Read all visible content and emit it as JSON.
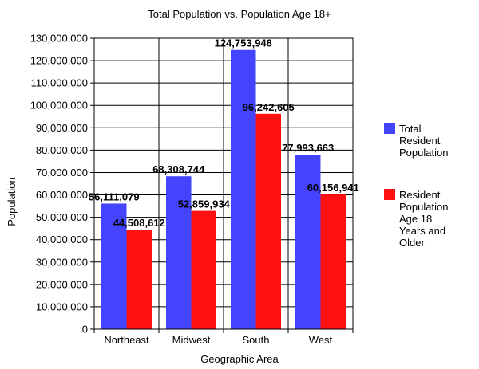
{
  "chart_data": {
    "type": "bar",
    "title": "Total Population vs. Population Age 18+",
    "xlabel": "Geographic Area",
    "ylabel": "Population",
    "ylim": [
      0,
      130000000
    ],
    "ytick_step": 10000000,
    "yticks": [
      "0",
      "10,000,000",
      "20,000,000",
      "30,000,000",
      "40,000,000",
      "50,000,000",
      "60,000,000",
      "70,000,000",
      "80,000,000",
      "90,000,000",
      "100,000,000",
      "110,000,000",
      "120,000,000",
      "130,000,000"
    ],
    "categories": [
      "Northeast",
      "Midwest",
      "South",
      "West"
    ],
    "series": [
      {
        "name": "Total Resident Population",
        "legend_lines": [
          "Total",
          "Resident",
          "Population"
        ],
        "color": "#4444ff",
        "values": [
          56111079,
          68308744,
          124753948,
          77993663
        ],
        "labels": [
          "56,111,079",
          "68,308,744",
          "124,753,948",
          "77,993,663"
        ]
      },
      {
        "name": "Resident Population Age 18 Years and Older",
        "legend_lines": [
          "Resident",
          "Population",
          "Age 18",
          "Years and",
          "Older"
        ],
        "color": "#ff1111",
        "values": [
          44508612,
          52859934,
          96242605,
          60156941
        ],
        "labels": [
          "44,508,612",
          "52,859,934",
          "96,242,605",
          "60,156,941"
        ]
      }
    ],
    "grid": true,
    "legend_position": "right"
  }
}
